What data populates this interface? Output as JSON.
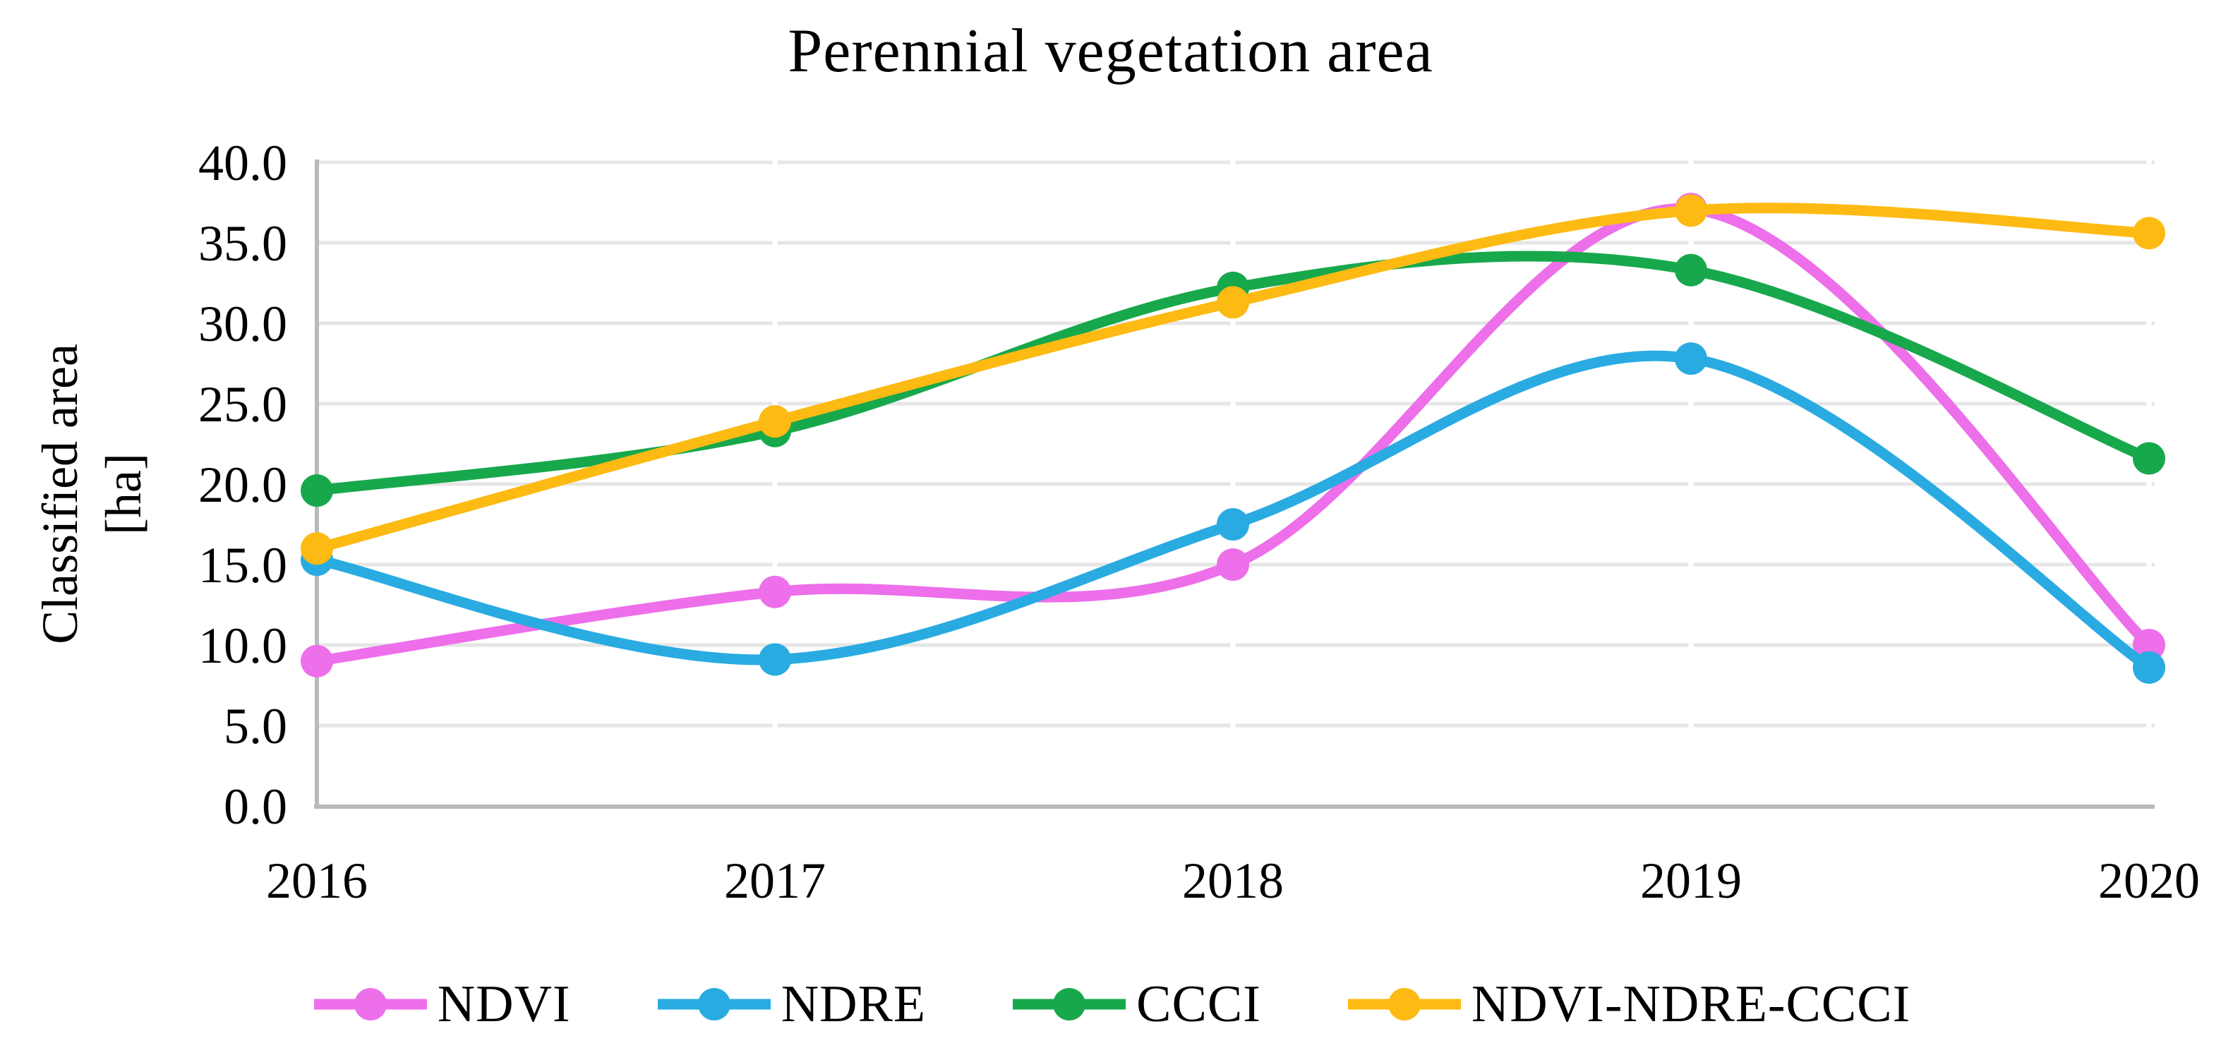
{
  "title": "Perennial vegetation area",
  "y_axis_title_line1": "Classified area",
  "y_axis_title_line2": "[ha]",
  "chart_data": {
    "type": "line",
    "title": "Perennial vegetation area",
    "ylabel": "Classified area [ha]",
    "xlabel": "",
    "smoothed": true,
    "grid": "horizontal",
    "legend_position": "bottom",
    "categories": [
      "2016",
      "2017",
      "2018",
      "2019",
      "2020"
    ],
    "series": [
      {
        "name": "NDVI",
        "color": "#ED6FEA",
        "values": [
          9.0,
          13.3,
          15.0,
          37.1,
          10.0
        ]
      },
      {
        "name": "NDRE",
        "color": "#29ABE2",
        "values": [
          15.3,
          9.1,
          17.5,
          27.8,
          8.6
        ]
      },
      {
        "name": "CCCI",
        "color": "#18A84C",
        "values": [
          19.6,
          23.3,
          32.2,
          33.3,
          21.6
        ]
      },
      {
        "name": "NDVI-NDRE-CCCI",
        "color": "#FDBA12",
        "values": [
          16.0,
          23.9,
          31.3,
          37.0,
          35.6
        ]
      }
    ],
    "ylim": [
      0,
      40
    ],
    "y_tick_step": 5,
    "y_tick_labels": [
      "0.0",
      "5.0",
      "10.0",
      "15.0",
      "20.0",
      "25.0",
      "30.0",
      "35.0",
      "40.0"
    ]
  },
  "colors": {
    "background": "#FFFFFF",
    "gridline": "#E6E6E6",
    "axis_line": "#B9B9B9",
    "text": "#000000"
  }
}
